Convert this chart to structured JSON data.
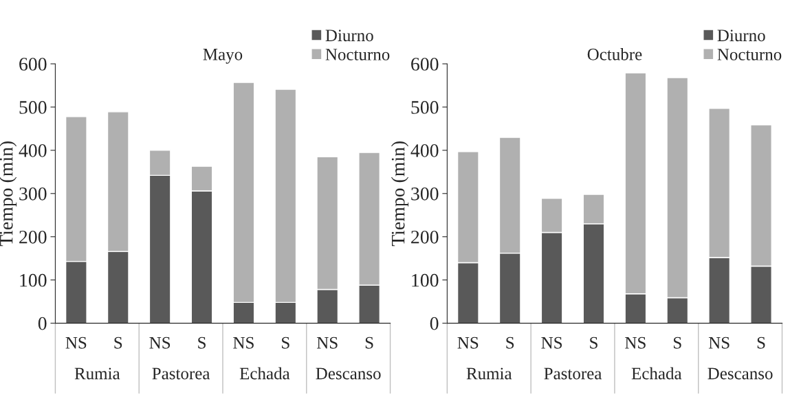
{
  "chart_data": [
    {
      "type": "bar",
      "title": "Mayo",
      "ylabel": "Tiempo (min)",
      "stacked": true,
      "legend": "top right",
      "grid": false,
      "categories": [
        "NS",
        "S",
        "NS",
        "S",
        "NS",
        "S",
        "NS",
        "S"
      ],
      "annotations": [
        "Rumia",
        "Pastorea",
        "Echada",
        "Descanso"
      ],
      "ylim": [
        0,
        600
      ],
      "yticks": [
        0,
        100,
        200,
        300,
        400,
        500,
        600
      ],
      "series": [
        {
          "name": "Diurno",
          "color": "#595959",
          "values": [
            143,
            166,
            342,
            306,
            48,
            48,
            78,
            88
          ]
        },
        {
          "name": "Nocturno",
          "color": "#b0b0b0",
          "values": [
            335,
            323,
            58,
            57,
            509,
            493,
            307,
            307
          ]
        }
      ]
    },
    {
      "type": "bar",
      "title": "Octubre",
      "ylabel": "Tiempo (min)",
      "stacked": true,
      "legend": "top right",
      "grid": false,
      "categories": [
        "NS",
        "S",
        "NS",
        "S",
        "NS",
        "S",
        "NS",
        "S"
      ],
      "annotations": [
        "Rumia",
        "Pastorea",
        "Echada",
        "Descanso"
      ],
      "ylim": [
        0,
        600
      ],
      "yticks": [
        0,
        100,
        200,
        300,
        400,
        500,
        600
      ],
      "series": [
        {
          "name": "Diurno",
          "color": "#595959",
          "values": [
            140,
            162,
            210,
            230,
            68,
            59,
            152,
            132
          ]
        },
        {
          "name": "Nocturno",
          "color": "#b0b0b0",
          "values": [
            257,
            268,
            79,
            68,
            511,
            509,
            345,
            327
          ]
        }
      ]
    }
  ]
}
